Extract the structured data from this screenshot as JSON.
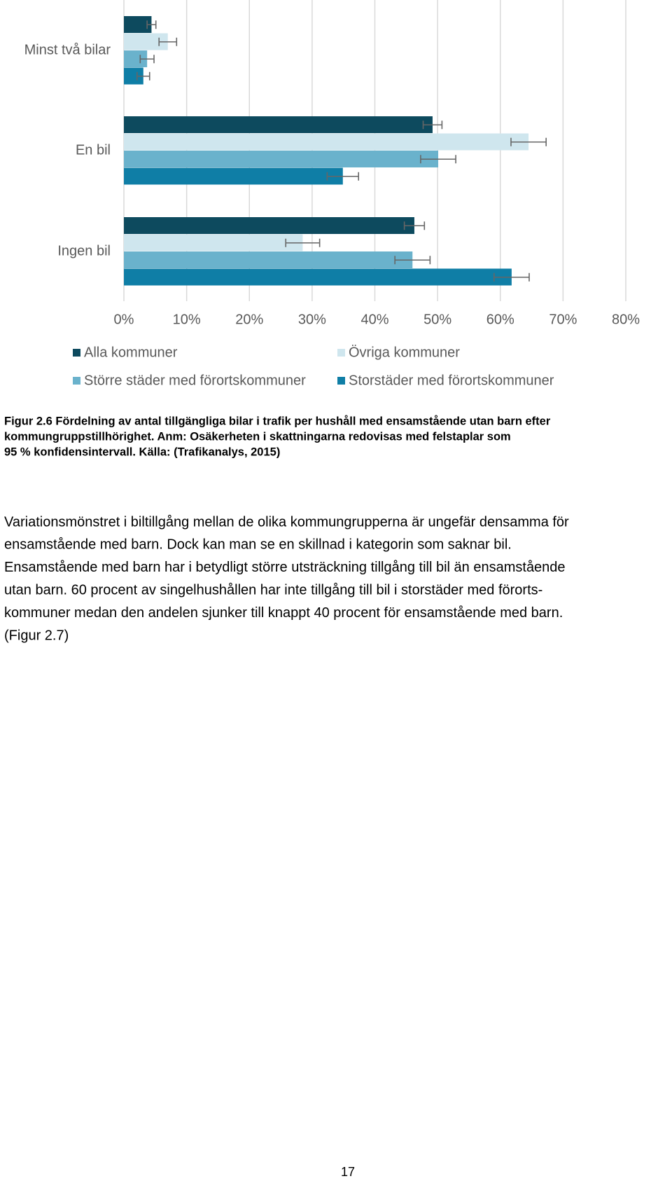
{
  "chart_data": {
    "type": "bar",
    "orientation": "horizontal",
    "categories": [
      "Minst två bilar",
      "En bil",
      "Ingen bil"
    ],
    "series": [
      {
        "name": "Alla kommuner",
        "color": "#0d4a5e",
        "values": [
          4.4,
          49.2,
          46.3
        ],
        "errors": [
          0.7,
          1.5,
          1.6
        ]
      },
      {
        "name": "Övriga kommuner",
        "color": "#cfe6ee",
        "values": [
          7.0,
          64.5,
          28.5
        ],
        "errors": [
          1.4,
          2.8,
          2.7
        ]
      },
      {
        "name": "Större städer med förortskommuner",
        "color": "#6ab2cc",
        "values": [
          3.7,
          50.1,
          46.0
        ],
        "errors": [
          1.1,
          2.8,
          2.8
        ]
      },
      {
        "name": "Storstäder med förortskommuner",
        "color": "#0f7ea6",
        "values": [
          3.1,
          34.9,
          61.8
        ],
        "errors": [
          1.0,
          2.5,
          2.8
        ]
      }
    ],
    "xlim": [
      0,
      80
    ],
    "xticks": [
      {
        "value": 0,
        "label": "0%"
      },
      {
        "value": 10,
        "label": "10%"
      },
      {
        "value": 20,
        "label": "20%"
      },
      {
        "value": 30,
        "label": "30%"
      },
      {
        "value": 40,
        "label": "40%"
      },
      {
        "value": 50,
        "label": "50%"
      },
      {
        "value": 60,
        "label": "60%"
      },
      {
        "value": 70,
        "label": "70%"
      },
      {
        "value": 80,
        "label": "80%"
      }
    ],
    "grid": true
  },
  "caption": [
    "Figur 2.6 Fördelning av antal tillgängliga bilar i trafik per hushåll med ensamstående utan barn efter",
    "kommungruppstillhörighet. Anm: Osäkerheten i skattningarna redovisas med felstaplar som",
    "95 % konfidensintervall. Källa: (Trafikanalys, 2015)"
  ],
  "body": [
    "Variationsmönstret i biltillgång mellan de olika kommungrupperna är ungefär densamma för",
    "ensamstående med barn. Dock kan man se en skillnad i kategorin som saknar bil.",
    "Ensamstående med barn har i betydligt större utsträckning tillgång till bil än ensamstående",
    "utan barn. 60 procent av singelhushållen har inte tillgång till bil i storstäder med förorts-",
    "kommuner medan den andelen sjunker till knappt 40 procent för ensamstående med barn.",
    "(Figur 2.7)"
  ],
  "page_number": "17"
}
